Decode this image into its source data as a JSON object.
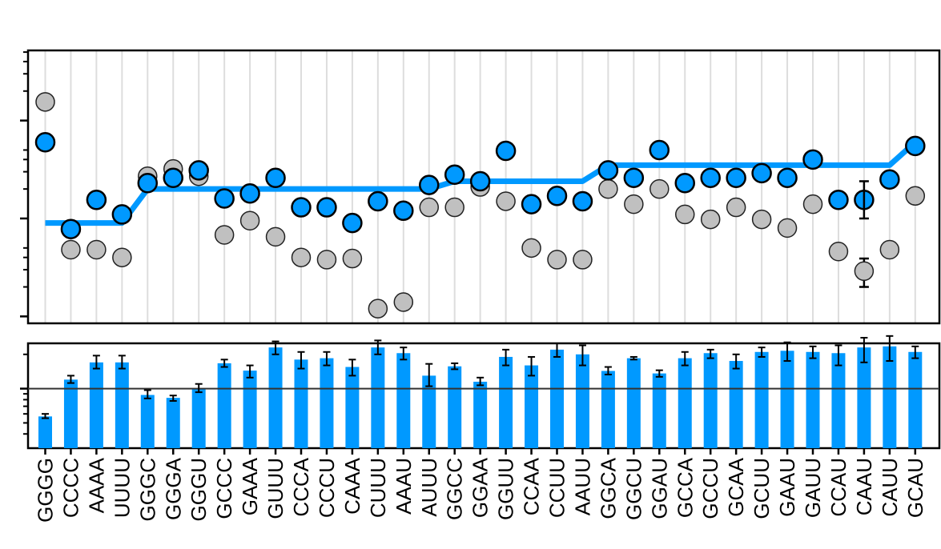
{
  "chart_data": [
    {
      "type": "scatter",
      "yscale": "log",
      "grid": "vertical",
      "categories": [
        "GGGG",
        "CCCC",
        "AAAA",
        "UUUU",
        "GGGC",
        "GGGA",
        "GGGU",
        "GCCC",
        "GAAA",
        "GUUU",
        "CCCA",
        "CCCU",
        "CAAA",
        "CUUU",
        "AAAU",
        "AUUU",
        "GGCC",
        "GGAA",
        "GGUU",
        "CCAA",
        "CCUU",
        "AAUU",
        "GGCA",
        "GGCU",
        "GGAU",
        "GCCA",
        "GCCU",
        "GCAA",
        "GCUU",
        "GAAU",
        "GAUU",
        "CCAU",
        "CAAU",
        "CAUU",
        "GCAU"
      ],
      "ylim": [
        0.0085,
        5.2
      ],
      "series": [
        {
          "color": "#c0c0c0",
          "values": [
            1.55,
            0.048,
            0.048,
            0.04,
            0.27,
            0.32,
            0.27,
            0.068,
            0.095,
            0.065,
            0.04,
            0.038,
            0.039,
            0.012,
            0.014,
            0.13,
            0.13,
            0.21,
            0.15,
            0.05,
            0.038,
            0.038,
            0.2,
            0.14,
            0.2,
            0.11,
            0.098,
            0.13,
            0.098,
            0.08,
            0.14,
            0.046,
            0.029,
            0.048,
            0.17
          ],
          "errors": [
            null,
            null,
            null,
            null,
            null,
            null,
            null,
            null,
            null,
            null,
            null,
            null,
            null,
            null,
            null,
            null,
            null,
            null,
            null,
            null,
            null,
            null,
            null,
            null,
            null,
            null,
            null,
            null,
            null,
            null,
            null,
            null,
            [
              0.02,
              0.039
            ],
            null,
            null
          ]
        },
        {
          "color": "#0099ff",
          "values": [
            0.6,
            0.078,
            0.155,
            0.11,
            0.23,
            0.26,
            0.31,
            0.16,
            0.18,
            0.26,
            0.13,
            0.13,
            0.09,
            0.15,
            0.12,
            0.22,
            0.28,
            0.24,
            0.49,
            0.14,
            0.17,
            0.15,
            0.31,
            0.26,
            0.5,
            0.23,
            0.26,
            0.26,
            0.29,
            0.26,
            0.4,
            0.155,
            0.155,
            0.25,
            0.55
          ],
          "errors": [
            null,
            null,
            null,
            null,
            null,
            null,
            null,
            null,
            null,
            null,
            null,
            null,
            null,
            null,
            null,
            null,
            null,
            null,
            null,
            null,
            null,
            null,
            null,
            null,
            null,
            null,
            null,
            null,
            null,
            null,
            null,
            null,
            [
              0.1,
              0.24
            ],
            null,
            null
          ]
        }
      ],
      "fit_line": {
        "color": "#0099ff",
        "values": [
          0.09,
          0.09,
          0.09,
          0.09,
          0.2,
          0.2,
          0.2,
          0.2,
          0.2,
          0.2,
          0.2,
          0.2,
          0.2,
          0.2,
          0.2,
          0.2,
          0.24,
          0.24,
          0.24,
          0.24,
          0.24,
          0.24,
          0.35,
          0.35,
          0.35,
          0.35,
          0.35,
          0.35,
          0.35,
          0.35,
          0.35,
          0.35,
          0.35,
          0.35,
          0.6
        ]
      }
    },
    {
      "type": "bar",
      "yscale": "log",
      "reference_line": 1,
      "color": "#0099ff",
      "categories": [
        "GGGG",
        "CCCC",
        "AAAA",
        "UUUU",
        "GGGC",
        "GGGA",
        "GGGU",
        "GCCC",
        "GAAA",
        "GUUU",
        "CCCA",
        "CCCU",
        "CAAA",
        "CUUU",
        "AAAU",
        "AUUU",
        "GGCC",
        "GGAA",
        "GGUU",
        "CCAA",
        "CCUU",
        "AAUU",
        "GGCA",
        "GGCU",
        "GGAU",
        "GCCA",
        "GCCU",
        "GCAA",
        "GCUU",
        "GAAU",
        "GAUU",
        "CCAU",
        "CAAU",
        "CAUU",
        "GCAU"
      ],
      "ylim": [
        0.3,
        2.5
      ],
      "values": [
        0.57,
        1.2,
        1.7,
        1.7,
        0.88,
        0.83,
        1.01,
        1.67,
        1.44,
        2.3,
        1.8,
        1.85,
        1.55,
        2.3,
        2.05,
        1.3,
        1.57,
        1.15,
        1.9,
        1.6,
        2.2,
        2.0,
        1.43,
        1.85,
        1.36,
        1.85,
        2.05,
        1.75,
        2.1,
        2.15,
        2.1,
        2.05,
        2.3,
        2.35,
        2.1
      ],
      "errors": [
        [
          0.55,
          0.6
        ],
        [
          1.12,
          1.3
        ],
        [
          1.5,
          1.95
        ],
        [
          1.5,
          1.95
        ],
        [
          0.82,
          0.97
        ],
        [
          0.78,
          0.87
        ],
        [
          0.93,
          1.1
        ],
        [
          1.55,
          1.8
        ],
        [
          1.25,
          1.6
        ],
        [
          2.0,
          2.6
        ],
        [
          1.5,
          2.1
        ],
        [
          1.6,
          2.1
        ],
        [
          1.3,
          1.8
        ],
        [
          2.0,
          2.65
        ],
        [
          1.8,
          2.3
        ],
        [
          1.05,
          1.65
        ],
        [
          1.48,
          1.67
        ],
        [
          1.07,
          1.25
        ],
        [
          1.6,
          2.2
        ],
        [
          1.3,
          1.9
        ],
        [
          1.9,
          2.5
        ],
        [
          1.6,
          2.4
        ],
        [
          1.33,
          1.55
        ],
        [
          1.8,
          1.9
        ],
        [
          1.27,
          1.45
        ],
        [
          1.6,
          2.1
        ],
        [
          1.85,
          2.2
        ],
        [
          1.5,
          2.0
        ],
        [
          1.9,
          2.3
        ],
        [
          1.75,
          2.55
        ],
        [
          1.85,
          2.35
        ],
        [
          1.6,
          2.4
        ],
        [
          1.7,
          2.8
        ],
        [
          1.75,
          2.9
        ],
        [
          1.85,
          2.35
        ]
      ]
    }
  ]
}
